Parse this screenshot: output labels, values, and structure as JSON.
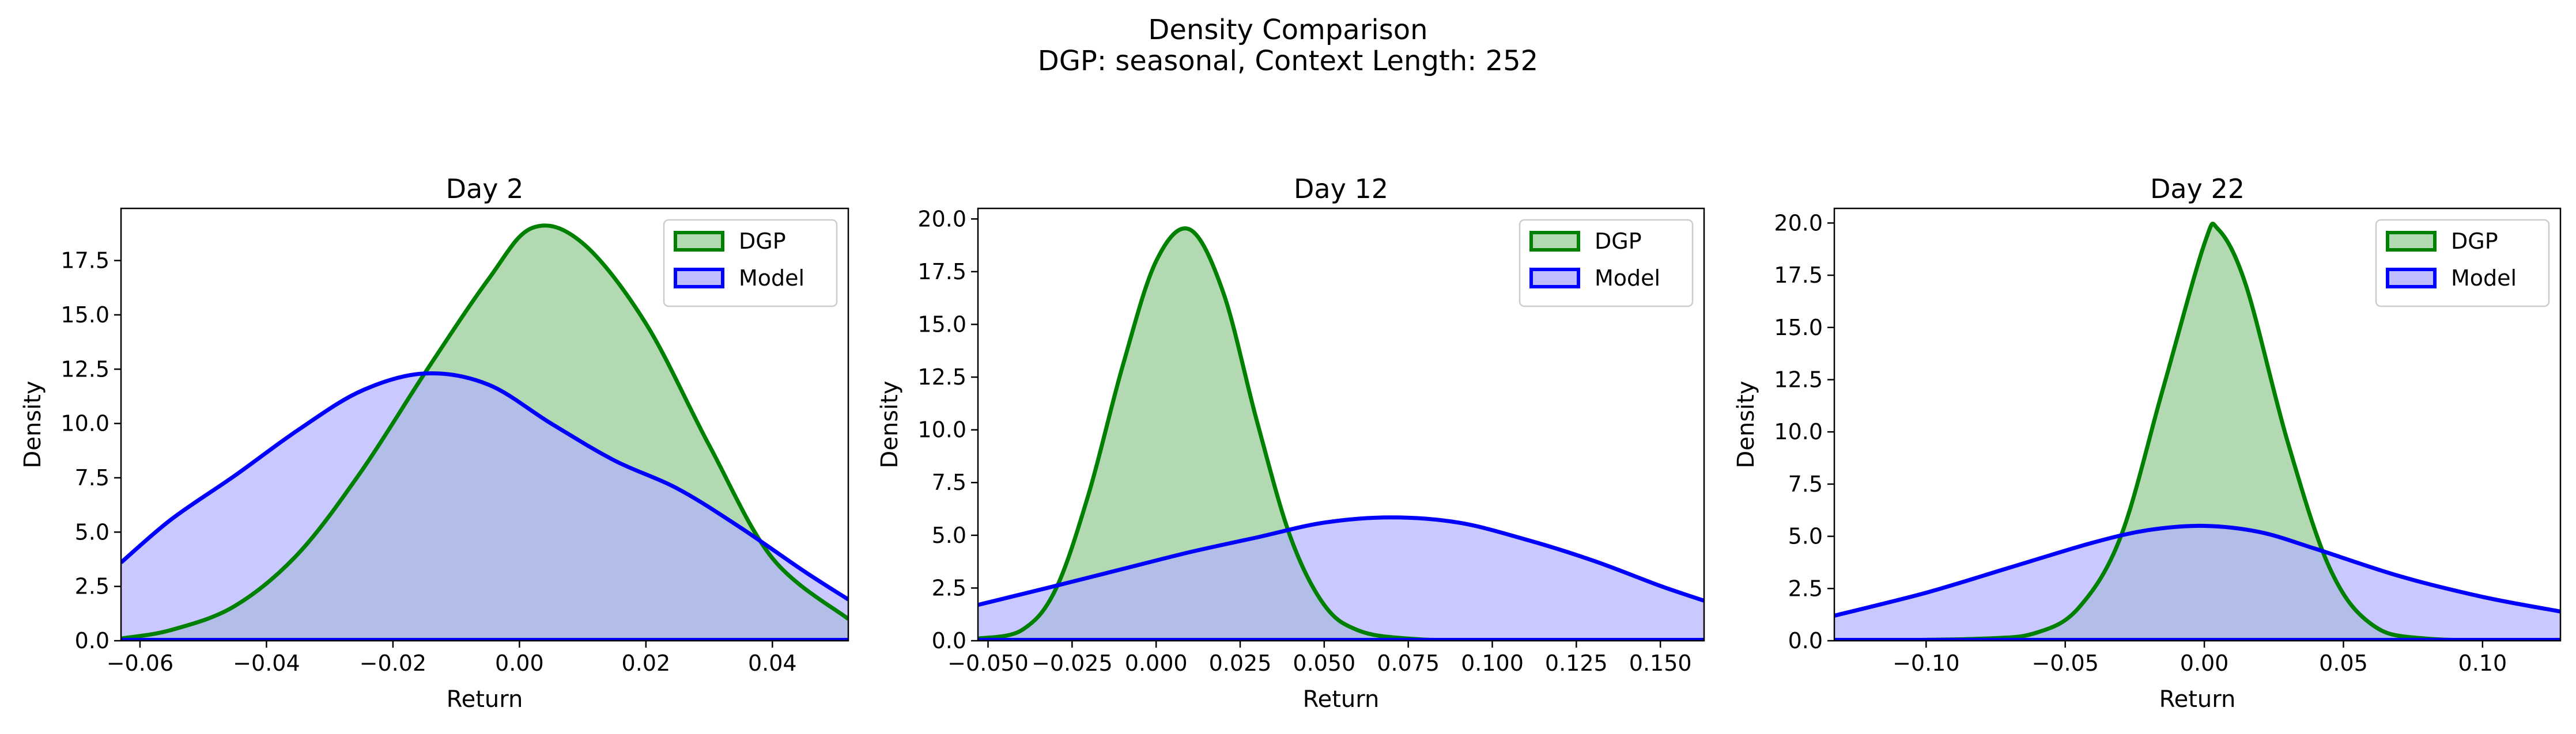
{
  "figure": {
    "title_line1": "Density Comparison",
    "title_line2": "DGP: seasonal, Context Length: 252"
  },
  "colors": {
    "dgp_line": "#008000",
    "dgp_fill": "#b2d9b2",
    "model_line": "#0000ff",
    "model_fill": "#b2b2ff"
  },
  "chart_data": [
    {
      "type": "area",
      "title": "Day 2",
      "xlabel": "Return",
      "ylabel": "Density",
      "xlim": [
        -0.063,
        0.052
      ],
      "ylim": [
        0,
        19.9
      ],
      "xticks": [
        -0.06,
        -0.04,
        -0.02,
        0.0,
        0.02,
        0.04
      ],
      "xtick_labels": [
        "−0.06",
        "−0.04",
        "−0.02",
        "0.00",
        "0.02",
        "0.04"
      ],
      "yticks": [
        0,
        2.5,
        5,
        7.5,
        10,
        12.5,
        15,
        17.5
      ],
      "ytick_labels": [
        "0.0",
        "2.5",
        "5.0",
        "7.5",
        "10.0",
        "12.5",
        "15.0",
        "17.5"
      ],
      "legend": {
        "position": "top-right",
        "entries": [
          "DGP",
          "Model"
        ]
      },
      "series": [
        {
          "name": "DGP",
          "x": [
            -0.063,
            -0.055,
            -0.045,
            -0.035,
            -0.025,
            -0.015,
            -0.005,
            0.002,
            0.01,
            0.02,
            0.03,
            0.04,
            0.052
          ],
          "values": [
            0.1,
            0.5,
            1.6,
            4.0,
            7.8,
            12.3,
            16.6,
            19.0,
            18.3,
            14.6,
            9.0,
            3.8,
            1.0
          ]
        },
        {
          "name": "Model",
          "x": [
            -0.063,
            -0.055,
            -0.045,
            -0.035,
            -0.025,
            -0.015,
            -0.005,
            0.005,
            0.015,
            0.025,
            0.035,
            0.045,
            0.052
          ],
          "values": [
            3.6,
            5.6,
            7.6,
            9.7,
            11.5,
            12.3,
            11.8,
            10.0,
            8.3,
            7.0,
            5.2,
            3.2,
            1.9
          ]
        }
      ]
    },
    {
      "type": "area",
      "title": "Day 12",
      "xlabel": "Return",
      "ylabel": "Density",
      "xlim": [
        -0.053,
        0.163
      ],
      "ylim": [
        0,
        20.5
      ],
      "xticks": [
        -0.05,
        -0.025,
        0.0,
        0.025,
        0.05,
        0.075,
        0.1,
        0.125,
        0.15
      ],
      "xtick_labels": [
        "−0.050",
        "−0.025",
        "0.000",
        "0.025",
        "0.050",
        "0.075",
        "0.100",
        "0.125",
        "0.150"
      ],
      "yticks": [
        0,
        2.5,
        5,
        7.5,
        10,
        12.5,
        15,
        17.5,
        20
      ],
      "ytick_labels": [
        "0.0",
        "2.5",
        "5.0",
        "7.5",
        "10.0",
        "12.5",
        "15.0",
        "17.5",
        "20.0"
      ],
      "legend": {
        "position": "top-right",
        "entries": [
          "DGP",
          "Model"
        ]
      },
      "series": [
        {
          "name": "DGP",
          "x": [
            -0.053,
            -0.04,
            -0.03,
            -0.02,
            -0.01,
            0.0,
            0.01,
            0.02,
            0.03,
            0.04,
            0.05,
            0.06,
            0.075,
            0.1,
            0.163
          ],
          "values": [
            0.1,
            0.5,
            2.4,
            7.0,
            13.0,
            18.0,
            19.5,
            16.5,
            10.4,
            4.9,
            1.7,
            0.5,
            0.1,
            0.0,
            0.0
          ]
        },
        {
          "name": "Model",
          "x": [
            -0.053,
            -0.03,
            -0.01,
            0.01,
            0.03,
            0.05,
            0.07,
            0.09,
            0.11,
            0.13,
            0.15,
            0.163
          ],
          "values": [
            1.7,
            2.6,
            3.4,
            4.2,
            4.9,
            5.6,
            5.85,
            5.6,
            4.8,
            3.8,
            2.6,
            1.9
          ]
        }
      ]
    },
    {
      "type": "area",
      "title": "Day 22",
      "xlabel": "Return",
      "ylabel": "Density",
      "xlim": [
        -0.133,
        0.128
      ],
      "ylim": [
        0,
        20.7
      ],
      "xticks": [
        -0.1,
        -0.05,
        0.0,
        0.05,
        0.1
      ],
      "xtick_labels": [
        "−0.10",
        "−0.05",
        "0.00",
        "0.05",
        "0.10"
      ],
      "yticks": [
        0,
        2.5,
        5,
        7.5,
        10,
        12.5,
        15,
        17.5,
        20
      ],
      "ytick_labels": [
        "0.0",
        "2.5",
        "5.0",
        "7.5",
        "10.0",
        "12.5",
        "15.0",
        "17.5",
        "20.0"
      ],
      "legend": {
        "position": "top-right",
        "entries": [
          "DGP",
          "Model"
        ]
      },
      "series": [
        {
          "name": "DGP",
          "x": [
            -0.133,
            -0.08,
            -0.06,
            -0.045,
            -0.03,
            -0.015,
            0.0,
            0.005,
            0.015,
            0.03,
            0.045,
            0.06,
            0.08,
            0.128
          ],
          "values": [
            0.0,
            0.1,
            0.4,
            1.6,
            5.0,
            12.0,
            19.0,
            19.7,
            17.0,
            9.5,
            3.5,
            0.8,
            0.1,
            0.0
          ]
        },
        {
          "name": "Model",
          "x": [
            -0.133,
            -0.1,
            -0.07,
            -0.04,
            -0.02,
            0.0,
            0.02,
            0.04,
            0.07,
            0.1,
            0.128
          ],
          "values": [
            1.2,
            2.3,
            3.5,
            4.7,
            5.3,
            5.5,
            5.2,
            4.4,
            3.1,
            2.1,
            1.4
          ]
        }
      ]
    }
  ]
}
